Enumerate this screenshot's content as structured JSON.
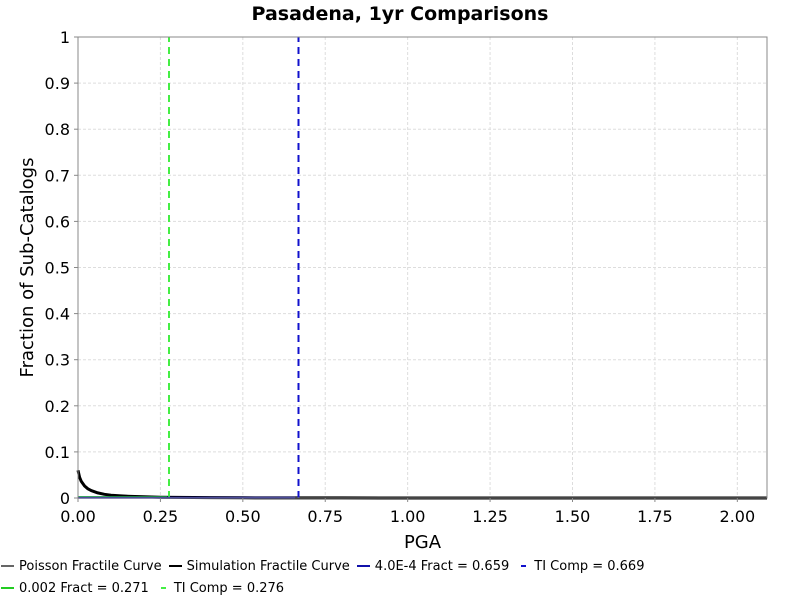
{
  "chart_data": {
    "type": "line",
    "title": "Pasadena, 1yr Comparisons",
    "xlabel": "PGA",
    "ylabel": "Fraction of Sub-Catalogs",
    "xlim": [
      0.0,
      2.09
    ],
    "ylim": [
      0,
      1
    ],
    "x_ticks": [
      "0.00",
      "0.25",
      "0.50",
      "0.75",
      "1.00",
      "1.25",
      "1.50",
      "1.75",
      "2.00"
    ],
    "y_ticks": [
      "0",
      "0.1",
      "0.2",
      "0.3",
      "0.4",
      "0.5",
      "0.6",
      "0.7",
      "0.8",
      "0.9",
      "1"
    ],
    "grid": true,
    "series": [
      {
        "name": "Simulation Fractile Curve",
        "color": "#000000",
        "style": "solid",
        "x": [
          0.0,
          0.005,
          0.01,
          0.02,
          0.03,
          0.04,
          0.06,
          0.08,
          0.1,
          0.13,
          0.16,
          0.2,
          0.25,
          0.3,
          0.4,
          0.5,
          0.6,
          0.8,
          1.0,
          1.5,
          2.09
        ],
        "y": [
          0.06,
          0.045,
          0.036,
          0.026,
          0.02,
          0.016,
          0.011,
          0.008,
          0.006,
          0.0045,
          0.0035,
          0.0025,
          0.0017,
          0.0012,
          0.0008,
          0.0005,
          0.0003,
          0.00015,
          0.0001,
          3e-05,
          0.0
        ]
      },
      {
        "name": "0.002 Fract = 0.271",
        "color": "#22cc22",
        "style": "solid",
        "x": [
          0.0,
          0.271
        ],
        "y": [
          0.002,
          0.002
        ]
      },
      {
        "name": "TI Comp = 0.276",
        "color": "#44ee44",
        "style": "dashed",
        "x": [
          0.276,
          0.276
        ],
        "y": [
          0,
          1
        ]
      },
      {
        "name": "4.0E-4 Fract = 0.659",
        "color": "#1111aa",
        "style": "solid",
        "x": [
          0.0,
          0.659
        ],
        "y": [
          0.0004,
          0.0004
        ]
      },
      {
        "name": "TI Comp = 0.669",
        "color": "#1111cc",
        "style": "dashed",
        "x": [
          0.669,
          0.669
        ],
        "y": [
          0,
          1
        ]
      }
    ]
  },
  "legend": [
    [
      {
        "label": "Poisson Fractile Curve",
        "color": "#666666",
        "style": "solid",
        "icon": "line-swatch"
      },
      {
        "label": "Simulation Fractile Curve",
        "color": "#000000",
        "style": "solid",
        "icon": "line-swatch"
      },
      {
        "label": "4.0E-4 Fract = 0.659",
        "color": "#1111aa",
        "style": "solid",
        "icon": "line-swatch"
      },
      {
        "label": "TI Comp = 0.669",
        "color": "#1111cc",
        "style": "dashed",
        "icon": "line-swatch"
      }
    ],
    [
      {
        "label": "0.002 Fract = 0.271",
        "color": "#22cc22",
        "style": "solid",
        "icon": "line-swatch"
      },
      {
        "label": "TI Comp = 0.276",
        "color": "#44ee44",
        "style": "dashed",
        "icon": "line-swatch"
      }
    ]
  ]
}
